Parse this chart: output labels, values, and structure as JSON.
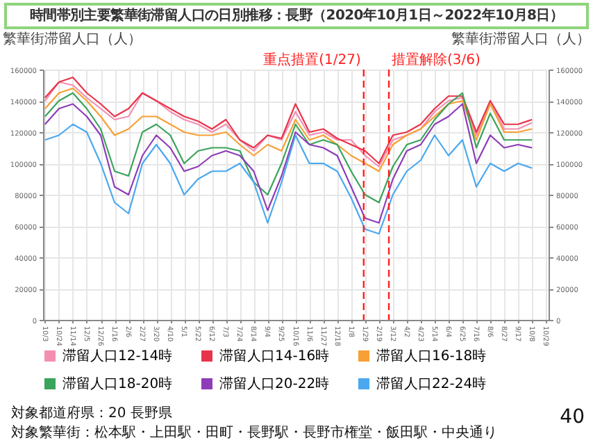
{
  "chart_data": {
    "type": "line",
    "title": "時間帯別主要繁華街滞留人口の日別推移：長野（2020年10月1日～2022年10月8日）",
    "ylabel": "繁華街滞留人口（人）",
    "y2label": "繁華街滞留人口（人）",
    "x": [
      "2020-10-03",
      "2020-10-24",
      "2020-11-14",
      "2020-12-05",
      "2020-12-26",
      "2021-01-16",
      "2021-02-06",
      "2021-02-27",
      "2021-03-20",
      "2021-04-10",
      "2021-05-01",
      "2021-05-22",
      "2021-06-12",
      "2021-07-03",
      "2021-07-24",
      "2021-08-14",
      "2021-09-04",
      "2021-09-25",
      "2021-10-16",
      "2021-11-06",
      "2021-11-27",
      "2021-12-18",
      "2022-01-08",
      "2022-01-29",
      "2022-02-19",
      "2022-03-12",
      "2022-04-02",
      "2022-04-23",
      "2022-05-14",
      "2022-06-04",
      "2022-06-25",
      "2022-07-16",
      "2022-08-06",
      "2022-08-27",
      "2022-09-17",
      "2022-10-08"
    ],
    "series": [
      {
        "name": "滞留人口12-14時",
        "color": "#f48fb1",
        "values": [
          140000,
          152000,
          150000,
          142000,
          135000,
          128000,
          130000,
          145000,
          140000,
          133000,
          128000,
          125000,
          120000,
          125000,
          115000,
          108000,
          118000,
          115000,
          133000,
          118000,
          120000,
          115000,
          115000,
          105000,
          98000,
          115000,
          118000,
          122000,
          133000,
          140000,
          142000,
          118000,
          140000,
          122000,
          122000,
          126000
        ]
      },
      {
        "name": "滞留人口14-16時",
        "color": "#e8344a",
        "values": [
          142000,
          152000,
          155000,
          145000,
          138000,
          130000,
          135000,
          145000,
          140000,
          135000,
          130000,
          127000,
          122000,
          128000,
          115000,
          110000,
          118000,
          116000,
          138000,
          120000,
          122000,
          116000,
          112000,
          108000,
          100000,
          118000,
          120000,
          125000,
          135000,
          143000,
          143000,
          120000,
          140000,
          125000,
          125000,
          128000
        ]
      },
      {
        "name": "滞留人口16-18時",
        "color": "#f7a035",
        "values": [
          135000,
          145000,
          148000,
          140000,
          130000,
          118000,
          122000,
          130000,
          130000,
          125000,
          120000,
          118000,
          118000,
          120000,
          112000,
          105000,
          112000,
          108000,
          128000,
          115000,
          118000,
          112000,
          105000,
          100000,
          95000,
          112000,
          118000,
          122000,
          130000,
          138000,
          140000,
          115000,
          138000,
          120000,
          120000,
          122000
        ]
      },
      {
        "name": "滞留人口18-20時",
        "color": "#3aa35c",
        "values": [
          130000,
          140000,
          145000,
          135000,
          122000,
          95000,
          92000,
          120000,
          125000,
          118000,
          100000,
          108000,
          110000,
          110000,
          108000,
          88000,
          80000,
          100000,
          125000,
          112000,
          115000,
          112000,
          95000,
          80000,
          75000,
          98000,
          112000,
          115000,
          128000,
          138000,
          145000,
          110000,
          132000,
          115000,
          115000,
          115000
        ]
      },
      {
        "name": "滞留人口20-22時",
        "color": "#8e3cb8",
        "values": [
          125000,
          135000,
          138000,
          130000,
          118000,
          85000,
          80000,
          105000,
          118000,
          110000,
          95000,
          98000,
          105000,
          108000,
          105000,
          95000,
          70000,
          92000,
          120000,
          112000,
          110000,
          105000,
          85000,
          65000,
          62000,
          90000,
          108000,
          112000,
          125000,
          130000,
          138000,
          100000,
          118000,
          110000,
          112000,
          110000
        ]
      },
      {
        "name": "滞留人口22-24時",
        "color": "#4aa8f0",
        "values": [
          115000,
          118000,
          125000,
          120000,
          100000,
          75000,
          68000,
          100000,
          112000,
          100000,
          80000,
          90000,
          95000,
          95000,
          100000,
          88000,
          62000,
          88000,
          118000,
          100000,
          100000,
          95000,
          78000,
          58000,
          55000,
          80000,
          95000,
          102000,
          118000,
          105000,
          115000,
          85000,
          100000,
          95000,
          100000,
          97000
        ]
      }
    ],
    "xlim": [
      "2020-09-30",
      "2022-11-02"
    ],
    "xticks": [
      {
        "value": "2020-10-03",
        "label": "10/3"
      },
      {
        "value": "2020-10-24",
        "label": "10/24"
      },
      {
        "value": "2020-11-14",
        "label": "11/14"
      },
      {
        "value": "2020-12-05",
        "label": "12/5"
      },
      {
        "value": "2020-12-26",
        "label": "12/26"
      },
      {
        "value": "2021-01-16",
        "label": "1/16"
      },
      {
        "value": "2021-02-06",
        "label": "2/6"
      },
      {
        "value": "2021-02-27",
        "label": "2/27"
      },
      {
        "value": "2021-03-20",
        "label": "3/20"
      },
      {
        "value": "2021-04-10",
        "label": "4/10"
      },
      {
        "value": "2021-05-01",
        "label": "5/1"
      },
      {
        "value": "2021-05-22",
        "label": "5/22"
      },
      {
        "value": "2021-06-12",
        "label": "6/12"
      },
      {
        "value": "2021-07-03",
        "label": "7/3"
      },
      {
        "value": "2021-07-24",
        "label": "7/24"
      },
      {
        "value": "2021-08-14",
        "label": "8/14"
      },
      {
        "value": "2021-09-04",
        "label": "9/4"
      },
      {
        "value": "2021-09-25",
        "label": "9/25"
      },
      {
        "value": "2021-10-16",
        "label": "10/16"
      },
      {
        "value": "2021-11-06",
        "label": "11/6"
      },
      {
        "value": "2021-11-27",
        "label": "11/27"
      },
      {
        "value": "2021-12-18",
        "label": "12/18"
      },
      {
        "value": "2022-01-08",
        "label": "1/8"
      },
      {
        "value": "2022-01-29",
        "label": "1/29"
      },
      {
        "value": "2022-02-19",
        "label": "2/19"
      },
      {
        "value": "2022-03-12",
        "label": "3/12"
      },
      {
        "value": "2022-04-02",
        "label": "4/2"
      },
      {
        "value": "2022-04-23",
        "label": "4/23"
      },
      {
        "value": "2022-05-14",
        "label": "5/14"
      },
      {
        "value": "2022-06-04",
        "label": "6/4"
      },
      {
        "value": "2022-06-25",
        "label": "6/25"
      },
      {
        "value": "2022-07-16",
        "label": "7/16"
      },
      {
        "value": "2022-08-06",
        "label": "8/6"
      },
      {
        "value": "2022-08-27",
        "label": "8/27"
      },
      {
        "value": "2022-09-17",
        "label": "9/17"
      },
      {
        "value": "2022-10-08",
        "label": "10/8"
      },
      {
        "value": "2022-10-29",
        "label": "10/29"
      }
    ],
    "ylim": [
      0,
      160000
    ],
    "yticks": [
      0,
      20000,
      40000,
      60000,
      80000,
      100000,
      120000,
      140000,
      160000
    ],
    "y2lim": [
      0,
      160000
    ],
    "y2ticks": [
      0,
      20000,
      40000,
      60000,
      80000,
      100000,
      120000,
      140000,
      160000
    ],
    "ref_lines": [
      {
        "axis": "x",
        "value": "2022-01-27",
        "label": "重点措置(1/27)",
        "color": "#ff2020",
        "line_style": "dashed"
      },
      {
        "axis": "x",
        "value": "2022-03-06",
        "label": "措置解除(3/6)",
        "color": "#ff2020",
        "line_style": "dashed"
      }
    ],
    "grid": true,
    "legend": "bottom",
    "marker": "none",
    "line_style": "solid",
    "annotations": [
      "対象都道府県：20 長野県",
      "対象繁華街：松本駅・上田駅・田町・長野駅・長野市権堂・飯田駅・中央通り",
      "40"
    ]
  }
}
